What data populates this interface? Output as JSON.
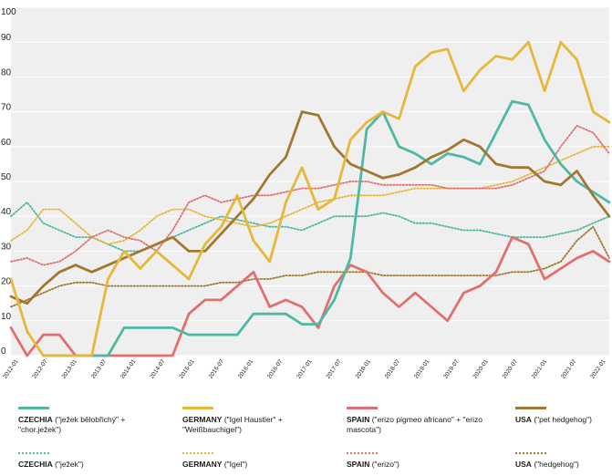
{
  "chart_data": {
    "type": "line",
    "title": "",
    "xlabel": "",
    "ylabel": "",
    "ylim": [
      0,
      100
    ],
    "yticks": [
      0,
      10,
      20,
      30,
      40,
      50,
      60,
      70,
      80,
      90,
      100
    ],
    "grid": true,
    "x_tick_labels": [
      "2012-01",
      "2012-07",
      "2013-01",
      "2013-07",
      "2014-01",
      "2014-07",
      "2015-01",
      "2015-07",
      "2016-01",
      "2016-07",
      "2017-01",
      "2017-07",
      "2018-01",
      "2018-07",
      "2019-01",
      "2019-07",
      "2020-01",
      "2020-07",
      "2021-01",
      "2021-07",
      "2022-01"
    ],
    "series": [
      {
        "key": "cz_pet",
        "country": "CZECHIA",
        "name": "(\"ježek bělobřichý\" + \"chor.ježek\")",
        "color": "#4fb8a3",
        "style": "solid",
        "values": [
          null,
          null,
          0,
          0,
          0,
          0,
          0,
          8,
          8,
          8,
          8,
          6,
          6,
          6,
          6,
          12,
          12,
          12,
          9,
          9,
          16,
          28,
          65,
          70,
          60,
          58,
          55,
          58,
          57,
          55,
          64,
          73,
          72,
          62,
          55,
          50,
          47,
          44
        ]
      },
      {
        "key": "de_pet",
        "country": "GERMANY",
        "name": "(\"Igel Haustier\" + \"Weißbauchigel\")",
        "color": "#e6b83a",
        "style": "solid",
        "values": [
          22,
          7,
          0,
          0,
          0,
          0,
          22,
          30,
          25,
          30,
          26,
          22,
          32,
          37,
          46,
          33,
          27,
          44,
          54,
          42,
          45,
          62,
          67,
          70,
          68,
          83,
          87,
          88,
          76,
          82,
          86,
          85,
          90,
          76,
          90,
          85,
          70,
          67
        ]
      },
      {
        "key": "es_pet",
        "country": "SPAIN",
        "name": "(\"erizo pigmeo africano\" + \"erizo mascota\")",
        "color": "#e07070",
        "style": "solid",
        "values": [
          8,
          0,
          6,
          6,
          0,
          0,
          0,
          0,
          0,
          0,
          0,
          12,
          16,
          16,
          20,
          24,
          14,
          16,
          14,
          8,
          20,
          26,
          24,
          18,
          14,
          18,
          14,
          10,
          18,
          20,
          24,
          34,
          32,
          22,
          25,
          28,
          30,
          27
        ]
      },
      {
        "key": "us_pet",
        "country": "USA",
        "name": "(\"pet hedgehog\")",
        "color": "#a07830",
        "style": "solid",
        "values": [
          17,
          15,
          20,
          24,
          26,
          24,
          26,
          28,
          30,
          32,
          34,
          30,
          30,
          35,
          40,
          45,
          52,
          57,
          70,
          69,
          60,
          55,
          53,
          51,
          52,
          54,
          57,
          59,
          62,
          60,
          55,
          54,
          54,
          50,
          49,
          53,
          46,
          40
        ]
      },
      {
        "key": "cz_gen",
        "country": "CZECHIA",
        "name": "(\"ježek\")",
        "color": "#4fb8a3",
        "style": "dotted",
        "values": [
          40,
          44,
          38,
          36,
          34,
          34,
          32,
          30,
          30,
          32,
          34,
          36,
          38,
          40,
          39,
          38,
          37,
          37,
          36,
          38,
          40,
          40,
          40,
          41,
          40,
          38,
          38,
          37,
          36,
          36,
          35,
          34,
          34,
          34,
          35,
          36,
          38,
          40
        ]
      },
      {
        "key": "de_gen",
        "country": "GERMANY",
        "name": "(\"Igel\")",
        "color": "#e6b83a",
        "style": "dotted",
        "values": [
          33,
          36,
          42,
          42,
          38,
          34,
          32,
          33,
          36,
          40,
          42,
          42,
          40,
          39,
          38,
          37,
          38,
          40,
          42,
          44,
          45,
          46,
          46,
          46,
          47,
          48,
          48,
          48,
          48,
          48,
          49,
          50,
          52,
          54,
          56,
          58,
          60,
          60
        ]
      },
      {
        "key": "es_gen",
        "country": "SPAIN",
        "name": "(\"erizo\")",
        "color": "#e07070",
        "style": "dotted",
        "values": [
          27,
          28,
          26,
          27,
          30,
          34,
          36,
          34,
          33,
          30,
          36,
          44,
          46,
          44,
          45,
          46,
          46,
          47,
          48,
          48,
          49,
          50,
          50,
          49,
          49,
          49,
          49,
          48,
          48,
          48,
          48,
          49,
          51,
          53,
          60,
          66,
          64,
          58
        ]
      },
      {
        "key": "us_gen",
        "country": "USA",
        "name": "(\"hedgehog\")",
        "color": "#a07830",
        "style": "dotted",
        "values": [
          14,
          16,
          18,
          20,
          21,
          21,
          20,
          20,
          20,
          20,
          20,
          20,
          20,
          21,
          21,
          22,
          22,
          23,
          23,
          24,
          24,
          24,
          24,
          23,
          23,
          23,
          23,
          23,
          23,
          23,
          23,
          24,
          24,
          25,
          27,
          33,
          37,
          28
        ]
      }
    ],
    "legend_position": "bottom"
  }
}
